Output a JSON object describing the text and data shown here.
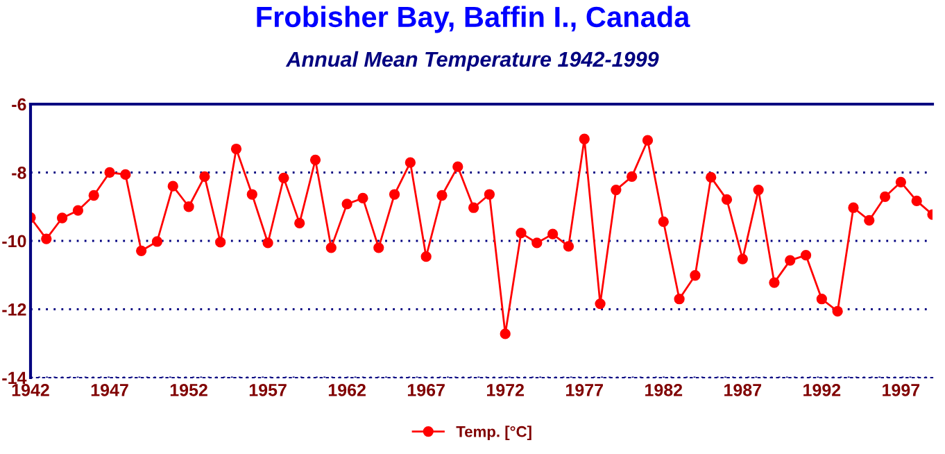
{
  "chart_data": {
    "type": "line",
    "title": "Frobisher Bay, Baffin I., Canada",
    "subtitle": "Annual Mean Temperature 1942-1999",
    "x": [
      1942,
      1943,
      1944,
      1945,
      1946,
      1947,
      1948,
      1949,
      1950,
      1951,
      1952,
      1953,
      1954,
      1955,
      1956,
      1957,
      1958,
      1959,
      1960,
      1961,
      1962,
      1963,
      1964,
      1965,
      1966,
      1967,
      1968,
      1969,
      1970,
      1971,
      1972,
      1973,
      1974,
      1975,
      1976,
      1977,
      1978,
      1979,
      1980,
      1981,
      1982,
      1983,
      1984,
      1985,
      1986,
      1987,
      1988,
      1989,
      1990,
      1991,
      1992,
      1993,
      1994,
      1995,
      1996,
      1997,
      1998,
      1999
    ],
    "series": [
      {
        "name": "Temp. [°C]",
        "color": "#ff0000",
        "values": [
          -9.32,
          -9.94,
          -9.33,
          -9.11,
          -8.67,
          -8.0,
          -8.06,
          -10.29,
          -10.02,
          -8.4,
          -9.0,
          -8.12,
          -10.04,
          -7.31,
          -8.64,
          -10.06,
          -8.16,
          -9.48,
          -7.63,
          -10.2,
          -8.92,
          -8.75,
          -10.2,
          -8.64,
          -7.71,
          -10.46,
          -8.67,
          -7.83,
          -9.03,
          -8.64,
          -12.72,
          -9.77,
          -10.06,
          -9.8,
          -10.16,
          -7.02,
          -11.84,
          -8.51,
          -8.12,
          -7.06,
          -9.44,
          -11.7,
          -11.01,
          -8.14,
          -8.79,
          -10.53,
          -8.51,
          -11.22,
          -10.57,
          -10.42,
          -11.7,
          -12.06,
          -9.03,
          -9.4,
          -8.71,
          -8.28,
          -8.83,
          -9.23
        ]
      }
    ],
    "xlim": [
      1942,
      1999
    ],
    "xticks": [
      1942,
      1947,
      1952,
      1957,
      1962,
      1967,
      1972,
      1977,
      1982,
      1987,
      1992,
      1997
    ],
    "ylim": [
      -14,
      -6
    ],
    "yticks": [
      -14,
      -12,
      -10,
      -8,
      -6
    ],
    "grid": "y",
    "legend": "bottom",
    "marker": "circle",
    "line_style": "solid"
  }
}
